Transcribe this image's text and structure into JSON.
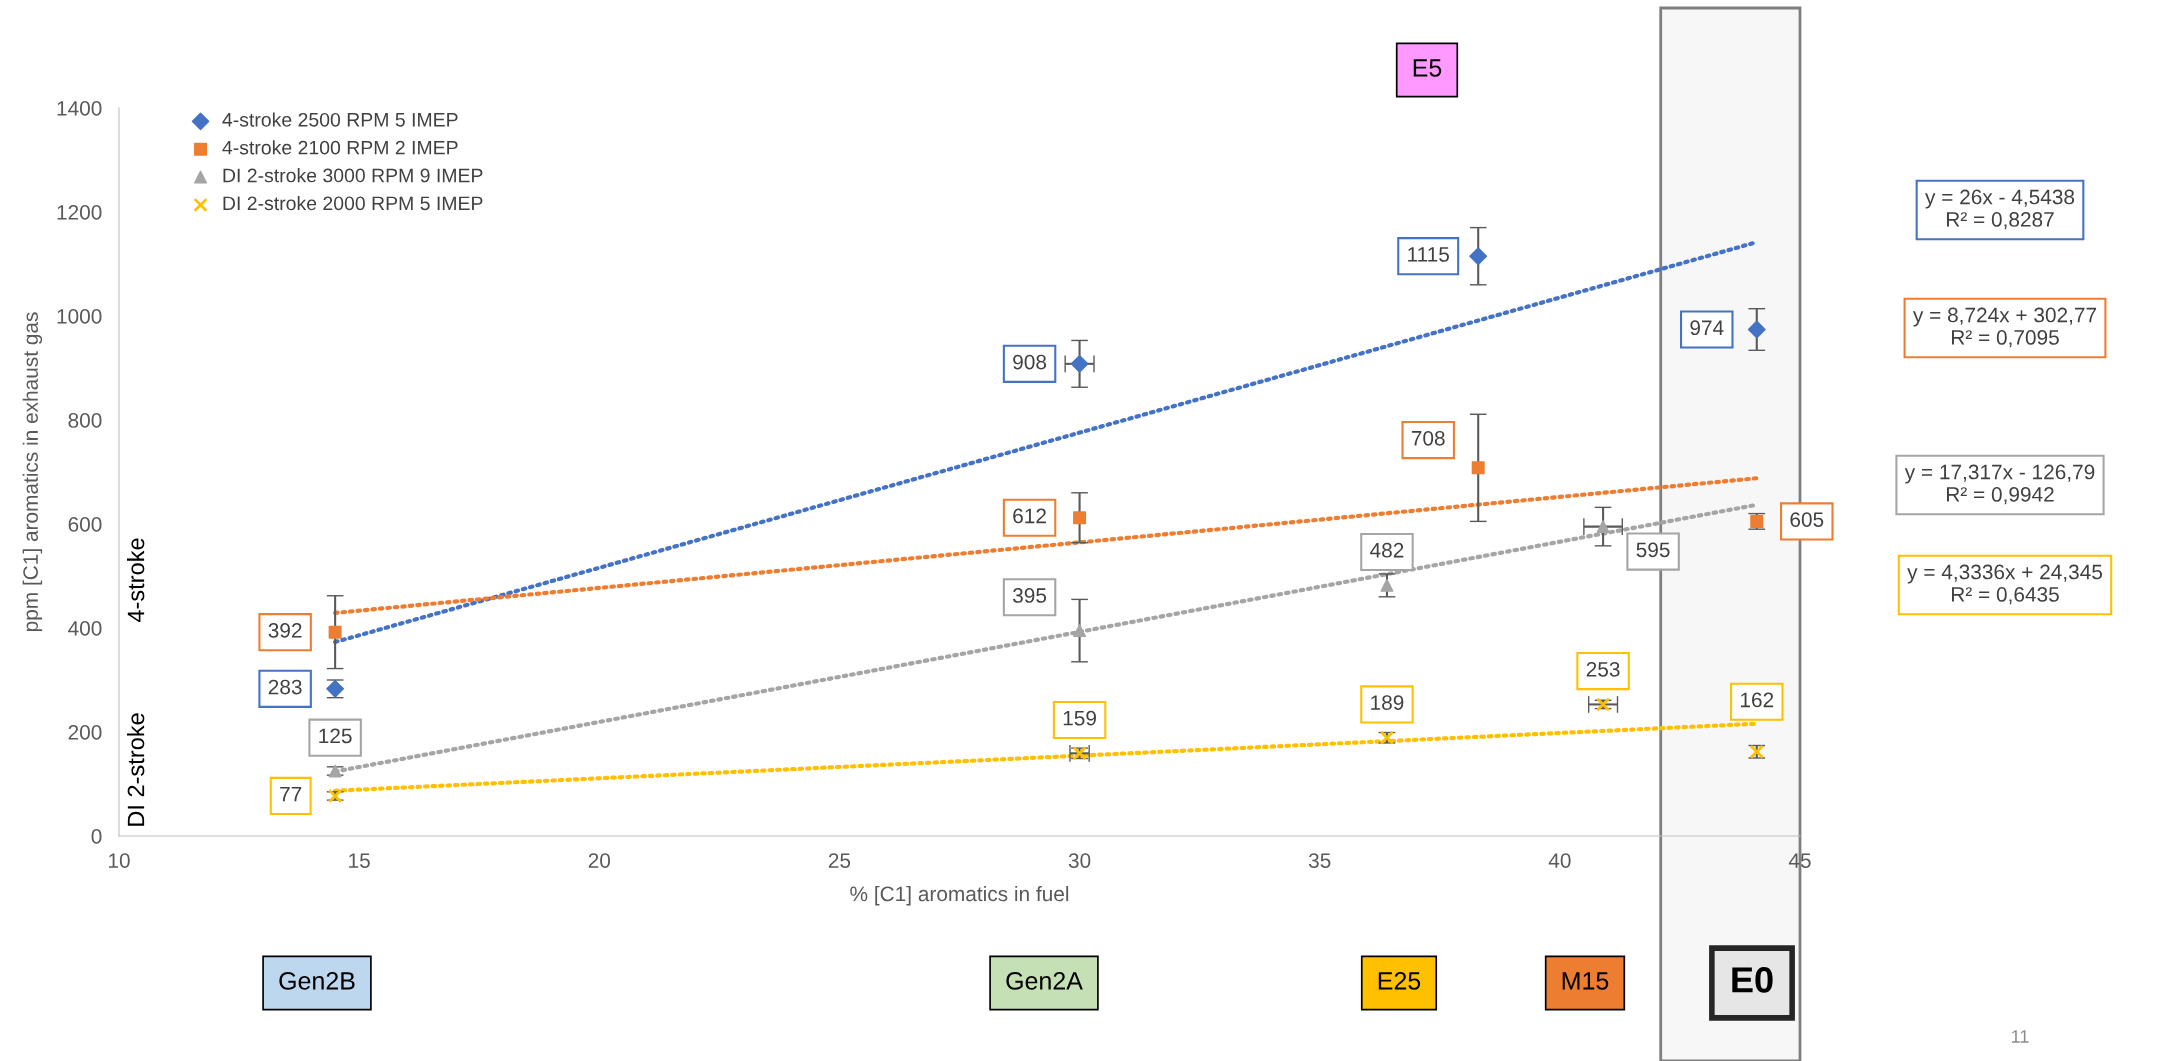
{
  "chart_data": {
    "type": "scatter",
    "xlabel": "% [C1] aromatics in fuel",
    "ylabel": "ppm [C1] aromatics in exhaust gas",
    "xlim": [
      10,
      45
    ],
    "xticks": [
      10,
      15,
      20,
      25,
      30,
      35,
      40,
      45
    ],
    "ylim": [
      0,
      1400
    ],
    "yticks": [
      0,
      200,
      400,
      600,
      800,
      1000,
      1200,
      1400
    ],
    "grid": false,
    "legend": "top left",
    "bands": [
      {
        "axis": "x",
        "from": 42.1,
        "to": 45,
        "color": "#f7f7f7"
      }
    ],
    "series": [
      {
        "name": "4-stroke 2500 RPM 5 IMEP",
        "color": "#4472c4",
        "marker": "diamond",
        "x": [
          14.5,
          30,
          38.3,
          44.1
        ],
        "values": [
          283,
          908,
          1115,
          974
        ],
        "errors": [
          17,
          45,
          55,
          40
        ],
        "xerrors": [
          null,
          0.3,
          null,
          null
        ],
        "value_labels": [
          "283",
          "908",
          "1115",
          "974"
        ]
      },
      {
        "name": "4-stroke 2100 RPM 2 IMEP",
        "color": "#ed7d31",
        "marker": "square",
        "x": [
          14.5,
          30,
          38.3,
          44.1
        ],
        "values": [
          392,
          612,
          708,
          605
        ],
        "errors": [
          70,
          48,
          103,
          15
        ],
        "value_labels": [
          "392",
          "612",
          "708",
          "605"
        ]
      },
      {
        "name": "DI 2-stroke 3000 RPM 9 IMEP",
        "color": "#a5a5a5",
        "marker": "triangle",
        "x": [
          14.5,
          30,
          36.4,
          40.9
        ],
        "values": [
          125,
          395,
          482,
          595
        ],
        "errors": [
          8,
          60,
          22,
          37
        ],
        "xerrors": [
          null,
          null,
          null,
          0.4
        ],
        "value_labels": [
          "125",
          "395",
          "482",
          "595"
        ]
      },
      {
        "name": "DI 2-stroke 2000 RPM 5 IMEP",
        "color": "#ffc000",
        "marker": "cross",
        "x": [
          14.5,
          30,
          36.4,
          40.9,
          44.1
        ],
        "values": [
          77,
          159,
          189,
          253,
          162
        ],
        "errors": [
          8,
          10,
          10,
          8,
          12
        ],
        "xerrors": [
          null,
          0.2,
          null,
          0.3,
          null
        ],
        "value_labels": [
          "77",
          "159",
          "189",
          "253",
          "162"
        ]
      },
      {
        "type": "line",
        "color": "#4472c4",
        "line_style": "dotted",
        "x": [
          14.5,
          44.1
        ],
        "values": [
          373,
          1142
        ]
      },
      {
        "type": "line",
        "color": "#ed7d31",
        "line_style": "dotted",
        "x": [
          14.5,
          44.1
        ],
        "values": [
          429,
          688
        ]
      },
      {
        "type": "line",
        "color": "#a5a5a5",
        "line_style": "dotted",
        "x": [
          14.5,
          44.1
        ],
        "values": [
          124,
          637
        ]
      },
      {
        "type": "line",
        "color": "#ffc000",
        "line_style": "dotted",
        "x": [
          14.5,
          44.1
        ],
        "values": [
          87,
          216
        ]
      }
    ],
    "annotations": [
      "y = 26x - 4,5438\nR² = 0,8287",
      "y = 8,724x + 302,77\nR² = 0,7095",
      "y = 17,317x - 126,79\nR² = 0,9942",
      "y = 4,3336x + 24,345\nR² = 0,6435",
      "4-stroke",
      "DI 2-stroke",
      "Gen2B",
      "Gen2A",
      "E25",
      "M15",
      "E0",
      "E5",
      "11"
    ]
  }
}
